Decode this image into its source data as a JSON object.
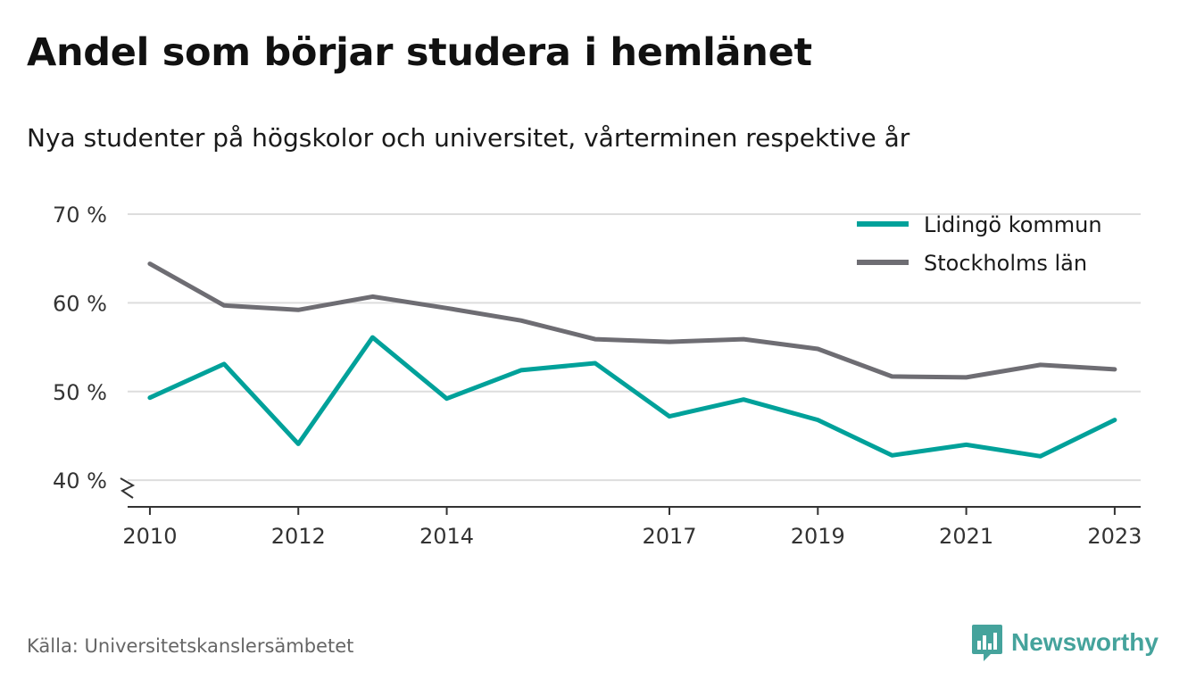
{
  "title": "Andel som börjar studera i hemlänet",
  "subtitle": "Nya studenter på högskolor och universitet, vårterminen respektive år",
  "source": "Källa: Universitetskanslersämbetet",
  "brand": "Newsworthy",
  "colors": {
    "lidingo": "#00a19a",
    "stockholm": "#6e6d73",
    "grid": "#dddddd",
    "axis": "#333333",
    "brand": "#45a39c"
  },
  "chart_data": {
    "type": "line",
    "x": [
      2010,
      2011,
      2012,
      2013,
      2014,
      2015,
      2016,
      2017,
      2018,
      2019,
      2020,
      2021,
      2022,
      2023
    ],
    "xticks": [
      2010,
      2012,
      2014,
      2017,
      2019,
      2021,
      2023
    ],
    "xtick_labels": [
      "2010",
      "2012",
      "2014",
      "2017",
      "2019",
      "2021",
      "2023"
    ],
    "yticks": [
      40,
      50,
      60,
      70
    ],
    "ytick_labels": [
      "40 %",
      "50 %",
      "60 %",
      "70 %"
    ],
    "ylim": [
      37,
      71
    ],
    "xlim": [
      2009.7,
      2023.35
    ],
    "axis_break": true,
    "grid": true,
    "legend_position": "top-right",
    "series": [
      {
        "name": "Lidingö kommun",
        "color": "#00a19a",
        "values": [
          49.3,
          53.1,
          44.1,
          56.1,
          49.2,
          52.4,
          53.2,
          47.2,
          49.1,
          46.8,
          42.8,
          44.0,
          42.7,
          46.8
        ]
      },
      {
        "name": "Stockholms län",
        "color": "#6e6d73",
        "values": [
          64.4,
          59.7,
          59.2,
          60.7,
          59.4,
          58.0,
          55.9,
          55.6,
          55.9,
          54.8,
          51.7,
          51.6,
          53.0,
          52.5
        ]
      }
    ]
  }
}
